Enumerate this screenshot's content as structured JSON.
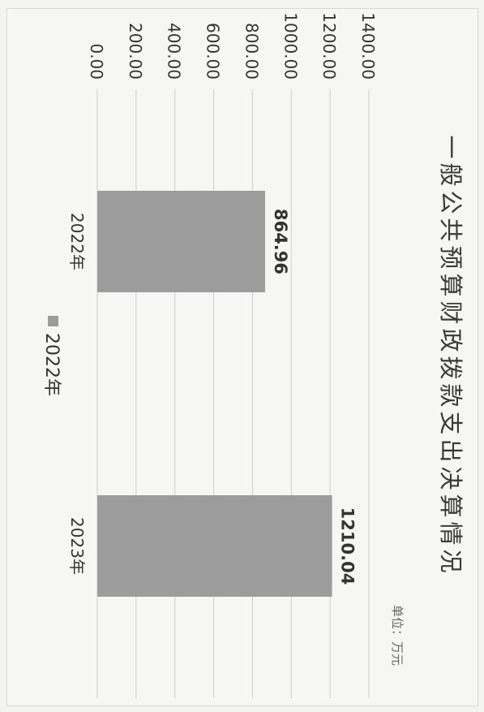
{
  "chart_data": {
    "type": "bar",
    "title": "一般公共预算财政拨款支出决算情况",
    "unit_label": "单位：万元",
    "categories": [
      "2022年",
      "2023年"
    ],
    "series": [
      {
        "name": "2022年",
        "values": [
          864.96,
          1210.04
        ]
      }
    ],
    "data_labels": [
      "864.96",
      "1210.04"
    ],
    "y_ticks": [
      "0.00",
      "200.00",
      "400.00",
      "600.00",
      "800.00",
      "1000.00",
      "1200.00",
      "1400.00"
    ],
    "ylim": [
      0,
      1400
    ],
    "grid": true,
    "legend_position": "bottom",
    "colors": {
      "bar": "#9c9c9c",
      "grid": "#cfcfcf",
      "text": "#333333"
    }
  }
}
